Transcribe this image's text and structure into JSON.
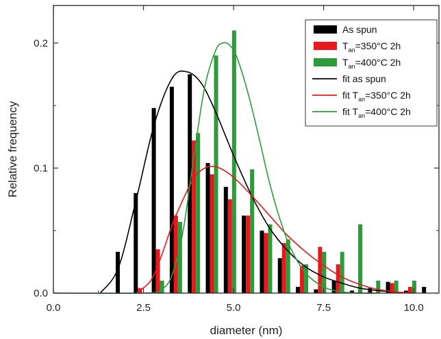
{
  "chart_data": {
    "type": "bar",
    "xlabel": "diameter (nm)",
    "ylabel": "Relative frequency",
    "xlim": [
      0,
      10.7
    ],
    "ylim": [
      0,
      0.23
    ],
    "x_ticks": [
      "0.0",
      "2.5",
      "5.0",
      "7.5",
      "10.0"
    ],
    "y_ticks": [
      "0.0",
      "0.1",
      "0.2"
    ],
    "grid": false,
    "legend_position": "top-right",
    "series": [
      {
        "name": "As spun",
        "legend_main": "As spun",
        "legend_sub": "",
        "legend_tail": "",
        "kind": "bar",
        "color": "#000000",
        "x": [
          1.9,
          2.4,
          2.9,
          3.4,
          3.9,
          4.4,
          4.9,
          5.4,
          5.9,
          6.4,
          6.9,
          7.4,
          7.9,
          8.4,
          8.9,
          9.4,
          9.9,
          10.4
        ],
        "y": [
          0.033,
          0.08,
          0.148,
          0.165,
          0.175,
          0.104,
          0.085,
          0.062,
          0.05,
          0.028,
          0.005,
          0.003,
          0.01,
          0.002,
          0.004,
          0.009,
          0.002,
          0.005
        ]
      },
      {
        "name": "Tan=350°C 2h",
        "legend_main": "T",
        "legend_sub": "an",
        "legend_tail": "=350°C 2h",
        "kind": "bar",
        "color": "#e8191c",
        "x": [
          1.9,
          2.4,
          2.9,
          3.4,
          3.9,
          4.4,
          4.9,
          5.4,
          5.9,
          6.4,
          6.9,
          7.4,
          7.9,
          8.4,
          8.9,
          9.4,
          9.9,
          10.4
        ],
        "y": [
          0.0,
          0.004,
          0.035,
          0.062,
          0.122,
          0.095,
          0.075,
          0.062,
          0.048,
          0.04,
          0.022,
          0.037,
          0.023,
          0.0,
          0.0,
          0.008,
          0.005,
          0.0
        ]
      },
      {
        "name": "Tan=400°C 2h",
        "legend_main": "T",
        "legend_sub": "an",
        "legend_tail": "=400°C 2h",
        "kind": "bar",
        "color": "#2e9b3a",
        "x": [
          1.9,
          2.4,
          2.9,
          3.4,
          3.9,
          4.4,
          4.9,
          5.4,
          5.9,
          6.4,
          6.9,
          7.4,
          7.9,
          8.4,
          8.9,
          9.4,
          9.9,
          10.4
        ],
        "y": [
          0.0,
          0.0,
          0.01,
          0.057,
          0.128,
          0.19,
          0.21,
          0.099,
          0.055,
          0.043,
          0.023,
          0.033,
          0.033,
          0.055,
          0.01,
          0.01,
          0.01,
          0.0
        ]
      },
      {
        "name": "fit as spun",
        "legend_main": "fit as spun",
        "legend_sub": "",
        "legend_tail": "",
        "kind": "line",
        "color": "#000000",
        "x": [
          1.3,
          1.8,
          2.3,
          2.8,
          3.3,
          3.7,
          4.1,
          4.5,
          5.0,
          5.5,
          6.0,
          6.5,
          7.0,
          7.5,
          8.0,
          8.5,
          9.0,
          9.5
        ],
        "y": [
          0.0,
          0.02,
          0.075,
          0.135,
          0.172,
          0.177,
          0.168,
          0.145,
          0.11,
          0.078,
          0.052,
          0.034,
          0.021,
          0.013,
          0.008,
          0.004,
          0.002,
          0.001
        ]
      },
      {
        "name": "fit Tan=350°C 2h",
        "legend_main": "fit T",
        "legend_sub": "an",
        "legend_tail": "=350°C 2h",
        "kind": "line",
        "color": "#e8191c",
        "x": [
          2.3,
          2.7,
          3.0,
          3.3,
          3.6,
          3.9,
          4.2,
          4.5,
          4.8,
          5.1,
          5.5,
          6.0,
          6.5,
          7.0,
          7.5,
          8.0,
          8.5,
          9.0,
          9.5,
          10.0
        ],
        "y": [
          0.0,
          0.01,
          0.03,
          0.055,
          0.075,
          0.092,
          0.1,
          0.101,
          0.097,
          0.09,
          0.078,
          0.062,
          0.046,
          0.033,
          0.022,
          0.013,
          0.007,
          0.003,
          0.001,
          0.0
        ]
      },
      {
        "name": "fit Tan=400°C 2h",
        "legend_main": "fit T",
        "legend_sub": "an",
        "legend_tail": "=400°C 2h",
        "kind": "line",
        "color": "#2e9b3a",
        "x": [
          0.0,
          2.5,
          3.0,
          3.3,
          3.6,
          3.9,
          4.2,
          4.5,
          4.7,
          4.9,
          5.1,
          5.4,
          5.7,
          6.0,
          6.3,
          6.6,
          7.0,
          7.5,
          8.0,
          8.5,
          9.0
        ],
        "y": [
          0.0,
          0.0,
          0.003,
          0.015,
          0.05,
          0.11,
          0.165,
          0.194,
          0.2,
          0.198,
          0.188,
          0.16,
          0.125,
          0.088,
          0.058,
          0.035,
          0.016,
          0.005,
          0.001,
          0.0,
          0.0
        ]
      }
    ]
  }
}
